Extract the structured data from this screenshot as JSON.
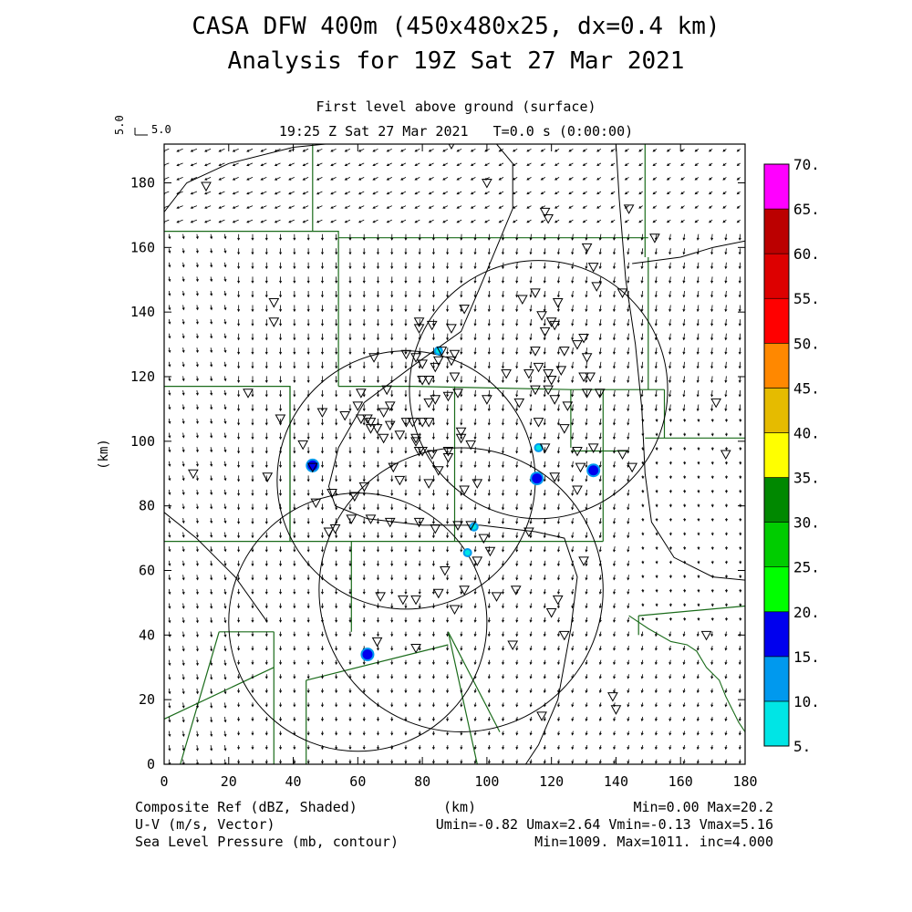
{
  "header": {
    "title_line1": "CASA DFW 400m (450x480x25, dx=0.4 km)",
    "title_line2": "Analysis for 19Z Sat 27 Mar 2021",
    "subtitle": "First level above ground (surface)",
    "time_line": "19:25 Z Sat 27 Mar 2021   T=0.0 s (0:00:00)",
    "vector_scale": "5.0"
  },
  "footer": {
    "field1": "Composite Ref (dBZ, Shaded)",
    "field2": "U-V (m/s, Vector)",
    "field3": "Sea Level Pressure (mb, contour)",
    "xunit": "(km)",
    "stats1": "Min=0.00 Max=20.2",
    "stats2": "Umin=-0.82 Umax=2.64 Vmin=-0.13 Vmax=5.16",
    "stats3": "Min=1009. Max=1011. inc=4.000"
  },
  "colors": {
    "background": "#ffffff",
    "county_lines": "#1a6b1a",
    "contours": "#000000",
    "vectors": "#000000"
  },
  "chart_data": {
    "type": "map",
    "xlabel": "(km)",
    "ylabel": "(km)",
    "xlim": [
      0,
      180
    ],
    "ylim": [
      0,
      192
    ],
    "xticks": [
      0,
      20,
      40,
      60,
      80,
      100,
      120,
      140,
      160,
      180
    ],
    "yticks": [
      0,
      20,
      40,
      60,
      80,
      100,
      120,
      140,
      160,
      180
    ],
    "colorbar": {
      "label": "Composite Ref (dBZ, Shaded)",
      "ticks": [
        "5.",
        "10.",
        "15.",
        "20.",
        "25.",
        "30.",
        "35.",
        "40.",
        "45.",
        "50.",
        "55.",
        "60.",
        "65.",
        "70."
      ],
      "colors": [
        "#00e5e5",
        "#0099ee",
        "#0000ee",
        "#00ff00",
        "#00cc00",
        "#008800",
        "#ffff00",
        "#e5bb00",
        "#ff8800",
        "#ff0000",
        "#dd0000",
        "#bb0000",
        "#ff00ff"
      ]
    },
    "radar_rings": [
      {
        "x": 60,
        "y": 44,
        "r": 40
      },
      {
        "x": 92,
        "y": 54,
        "r": 44
      },
      {
        "x": 75,
        "y": 88,
        "r": 40
      },
      {
        "x": 116,
        "y": 116,
        "r": 40
      }
    ],
    "echoes": [
      {
        "x": 46,
        "y": 92.5,
        "dbz": 15
      },
      {
        "x": 115.5,
        "y": 88.5,
        "dbz": 15
      },
      {
        "x": 133,
        "y": 91,
        "dbz": 15
      },
      {
        "x": 63,
        "y": 34,
        "dbz": 15
      },
      {
        "x": 96,
        "y": 73.5,
        "dbz": 8
      },
      {
        "x": 94,
        "y": 65.5,
        "dbz": 8
      },
      {
        "x": 116,
        "y": 98,
        "dbz": 6
      },
      {
        "x": 85,
        "y": 128,
        "dbz": 6
      }
    ],
    "stations": [
      [
        13,
        179
      ],
      [
        89,
        192
      ],
      [
        100,
        180
      ],
      [
        118,
        171
      ],
      [
        119,
        169
      ],
      [
        144,
        172
      ],
      [
        152,
        163
      ],
      [
        133,
        154
      ],
      [
        131,
        160
      ],
      [
        134,
        148
      ],
      [
        142,
        146
      ],
      [
        115,
        146
      ],
      [
        111,
        144
      ],
      [
        122,
        143
      ],
      [
        120,
        137
      ],
      [
        117,
        139
      ],
      [
        121,
        136
      ],
      [
        118,
        134
      ],
      [
        130,
        132
      ],
      [
        128,
        130
      ],
      [
        124,
        128
      ],
      [
        131,
        126
      ],
      [
        115,
        128
      ],
      [
        116,
        123
      ],
      [
        119,
        121
      ],
      [
        123,
        122
      ],
      [
        120,
        119
      ],
      [
        113,
        121
      ],
      [
        106,
        121
      ],
      [
        130,
        120
      ],
      [
        132,
        120
      ],
      [
        131,
        115
      ],
      [
        135,
        115
      ],
      [
        115,
        116
      ],
      [
        119,
        116
      ],
      [
        110,
        112
      ],
      [
        125,
        111
      ],
      [
        116,
        106
      ],
      [
        124,
        104
      ],
      [
        128,
        97
      ],
      [
        133,
        98
      ],
      [
        118,
        98
      ],
      [
        121,
        89
      ],
      [
        129,
        92
      ],
      [
        128,
        85
      ],
      [
        121,
        113
      ],
      [
        34,
        143
      ],
      [
        34,
        137
      ],
      [
        26,
        115
      ],
      [
        36,
        107
      ],
      [
        9,
        90
      ],
      [
        32,
        89
      ],
      [
        46,
        92
      ],
      [
        49,
        109
      ],
      [
        43,
        99
      ],
      [
        61,
        107
      ],
      [
        63,
        107
      ],
      [
        64,
        104
      ],
      [
        66,
        104
      ],
      [
        68,
        101
      ],
      [
        70,
        105
      ],
      [
        73,
        102
      ],
      [
        77,
        106
      ],
      [
        80,
        106
      ],
      [
        82,
        106
      ],
      [
        82,
        112
      ],
      [
        84,
        113
      ],
      [
        82,
        119
      ],
      [
        80,
        119
      ],
      [
        84,
        123
      ],
      [
        85,
        125
      ],
      [
        89,
        125
      ],
      [
        86,
        128
      ],
      [
        75,
        127
      ],
      [
        78,
        126
      ],
      [
        80,
        124
      ],
      [
        88,
        114
      ],
      [
        90,
        120
      ],
      [
        91,
        115
      ],
      [
        79,
        135
      ],
      [
        79,
        137
      ],
      [
        83,
        136
      ],
      [
        89,
        135
      ],
      [
        93,
        141
      ],
      [
        90,
        127
      ],
      [
        100,
        113
      ],
      [
        65,
        126
      ],
      [
        69,
        116
      ],
      [
        92,
        101
      ],
      [
        92,
        103
      ],
      [
        95,
        99
      ],
      [
        88,
        97
      ],
      [
        83,
        96
      ],
      [
        80,
        97
      ],
      [
        79,
        97
      ],
      [
        78,
        100
      ],
      [
        78,
        101
      ],
      [
        75,
        106
      ],
      [
        70,
        111
      ],
      [
        71,
        92
      ],
      [
        73,
        88
      ],
      [
        82,
        87
      ],
      [
        85,
        91
      ],
      [
        59,
        83
      ],
      [
        58,
        76
      ],
      [
        64,
        76
      ],
      [
        53,
        73
      ],
      [
        51,
        72
      ],
      [
        62,
        86
      ],
      [
        70,
        75
      ],
      [
        79,
        75
      ],
      [
        84,
        73
      ],
      [
        91,
        74
      ],
      [
        95,
        74
      ],
      [
        99,
        70
      ],
      [
        101,
        66
      ],
      [
        97,
        63
      ],
      [
        87,
        60
      ],
      [
        85,
        53
      ],
      [
        93,
        54
      ],
      [
        103,
        52
      ],
      [
        109,
        54
      ],
      [
        113,
        72
      ],
      [
        120,
        47
      ],
      [
        122,
        51
      ],
      [
        130,
        63
      ],
      [
        124,
        40
      ],
      [
        108,
        37
      ],
      [
        67,
        52
      ],
      [
        74,
        51
      ],
      [
        78,
        51
      ],
      [
        78,
        36
      ],
      [
        66,
        38
      ],
      [
        90,
        48
      ],
      [
        117,
        15
      ],
      [
        140,
        17
      ],
      [
        139,
        21
      ],
      [
        168,
        40
      ],
      [
        171,
        112
      ],
      [
        174,
        96
      ],
      [
        142,
        96
      ],
      [
        145,
        92
      ],
      [
        93,
        85
      ],
      [
        97,
        87
      ],
      [
        88,
        95
      ],
      [
        61,
        115
      ],
      [
        68,
        109
      ],
      [
        64,
        106
      ],
      [
        60,
        111
      ],
      [
        56,
        108
      ],
      [
        52,
        84
      ],
      [
        47,
        81
      ]
    ]
  }
}
